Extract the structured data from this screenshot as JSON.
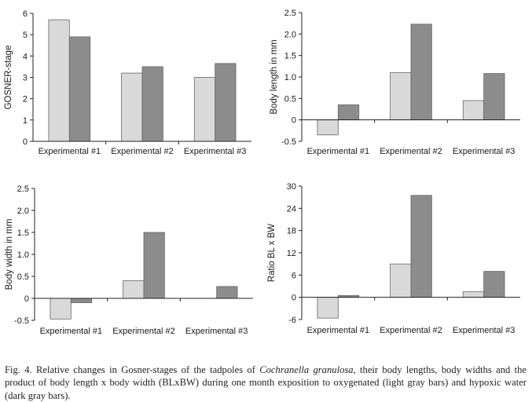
{
  "colors": {
    "light": "#d9d9d9",
    "dark": "#8c8c8c",
    "stroke": "#666666",
    "axis": "#222222"
  },
  "chart_data": [
    {
      "type": "bar",
      "categories": [
        "Experimental #1",
        "Experimental #2",
        "Experimental #3"
      ],
      "series": [
        {
          "values": [
            5.7,
            3.2,
            3.0
          ]
        },
        {
          "values": [
            4.9,
            3.5,
            3.65
          ]
        }
      ],
      "ylabel": "GOSNER-stage",
      "ylim": [
        0,
        6
      ],
      "yticks": [
        0,
        1,
        2,
        3,
        4,
        5,
        6
      ],
      "ytick_labels": [
        "0",
        "1",
        "2",
        "3",
        "4",
        "5",
        "6"
      ],
      "grid": false
    },
    {
      "type": "bar",
      "categories": [
        "Experimental #1",
        "Experimental #2",
        "Experimental #3"
      ],
      "series": [
        {
          "values": [
            -0.35,
            1.1,
            0.45
          ]
        },
        {
          "values": [
            0.35,
            2.23,
            1.08
          ]
        }
      ],
      "ylabel": "Body length in mm",
      "ylim": [
        -0.5,
        2.5
      ],
      "yticks": [
        -0.5,
        0,
        0.5,
        1.0,
        1.5,
        2.0,
        2.5
      ],
      "ytick_labels": [
        "-0.5",
        "0",
        "0.5",
        "1.0",
        "1.5",
        "2.0",
        "2.5"
      ],
      "grid": false
    },
    {
      "type": "bar",
      "categories": [
        "Experimental #1",
        "Experimental #2",
        "Experimental #3"
      ],
      "series": [
        {
          "values": [
            -0.47,
            0.4,
            0.0
          ]
        },
        {
          "values": [
            -0.1,
            1.5,
            0.27
          ]
        }
      ],
      "ylabel": "Body width in mm",
      "ylim": [
        -0.5,
        2.5
      ],
      "yticks": [
        -0.5,
        0,
        0.5,
        1.0,
        1.5,
        2.0,
        2.5
      ],
      "ytick_labels": [
        "-0.5",
        "0",
        "0.5",
        "1.0",
        "1.5",
        "2.0",
        "2.5"
      ],
      "grid": false
    },
    {
      "type": "bar",
      "categories": [
        "Experimental #1",
        "Experimental #2",
        "Experimental #3"
      ],
      "series": [
        {
          "values": [
            -5.6,
            9.0,
            1.5
          ]
        },
        {
          "values": [
            0.5,
            27.5,
            7.0
          ]
        }
      ],
      "ylabel": "Ratio BL x BW",
      "ylim": [
        -6,
        30
      ],
      "yticks": [
        -6,
        0,
        6,
        12,
        18,
        24,
        30
      ],
      "ytick_labels": [
        "-6",
        "0",
        "6",
        "12",
        "18",
        "24",
        "30"
      ],
      "grid": false
    }
  ],
  "caption": {
    "prefix": "Fig. 4. Relative changes in Gosner-stages of the tadpoles of ",
    "species": "Cochranella granulosa",
    "suffix": ", their body lengths, body widths and the product of body length x body width (BLxBW) during one month exposition to oxygenated (light gray bars) and hypoxic water (dark gray bars)."
  }
}
